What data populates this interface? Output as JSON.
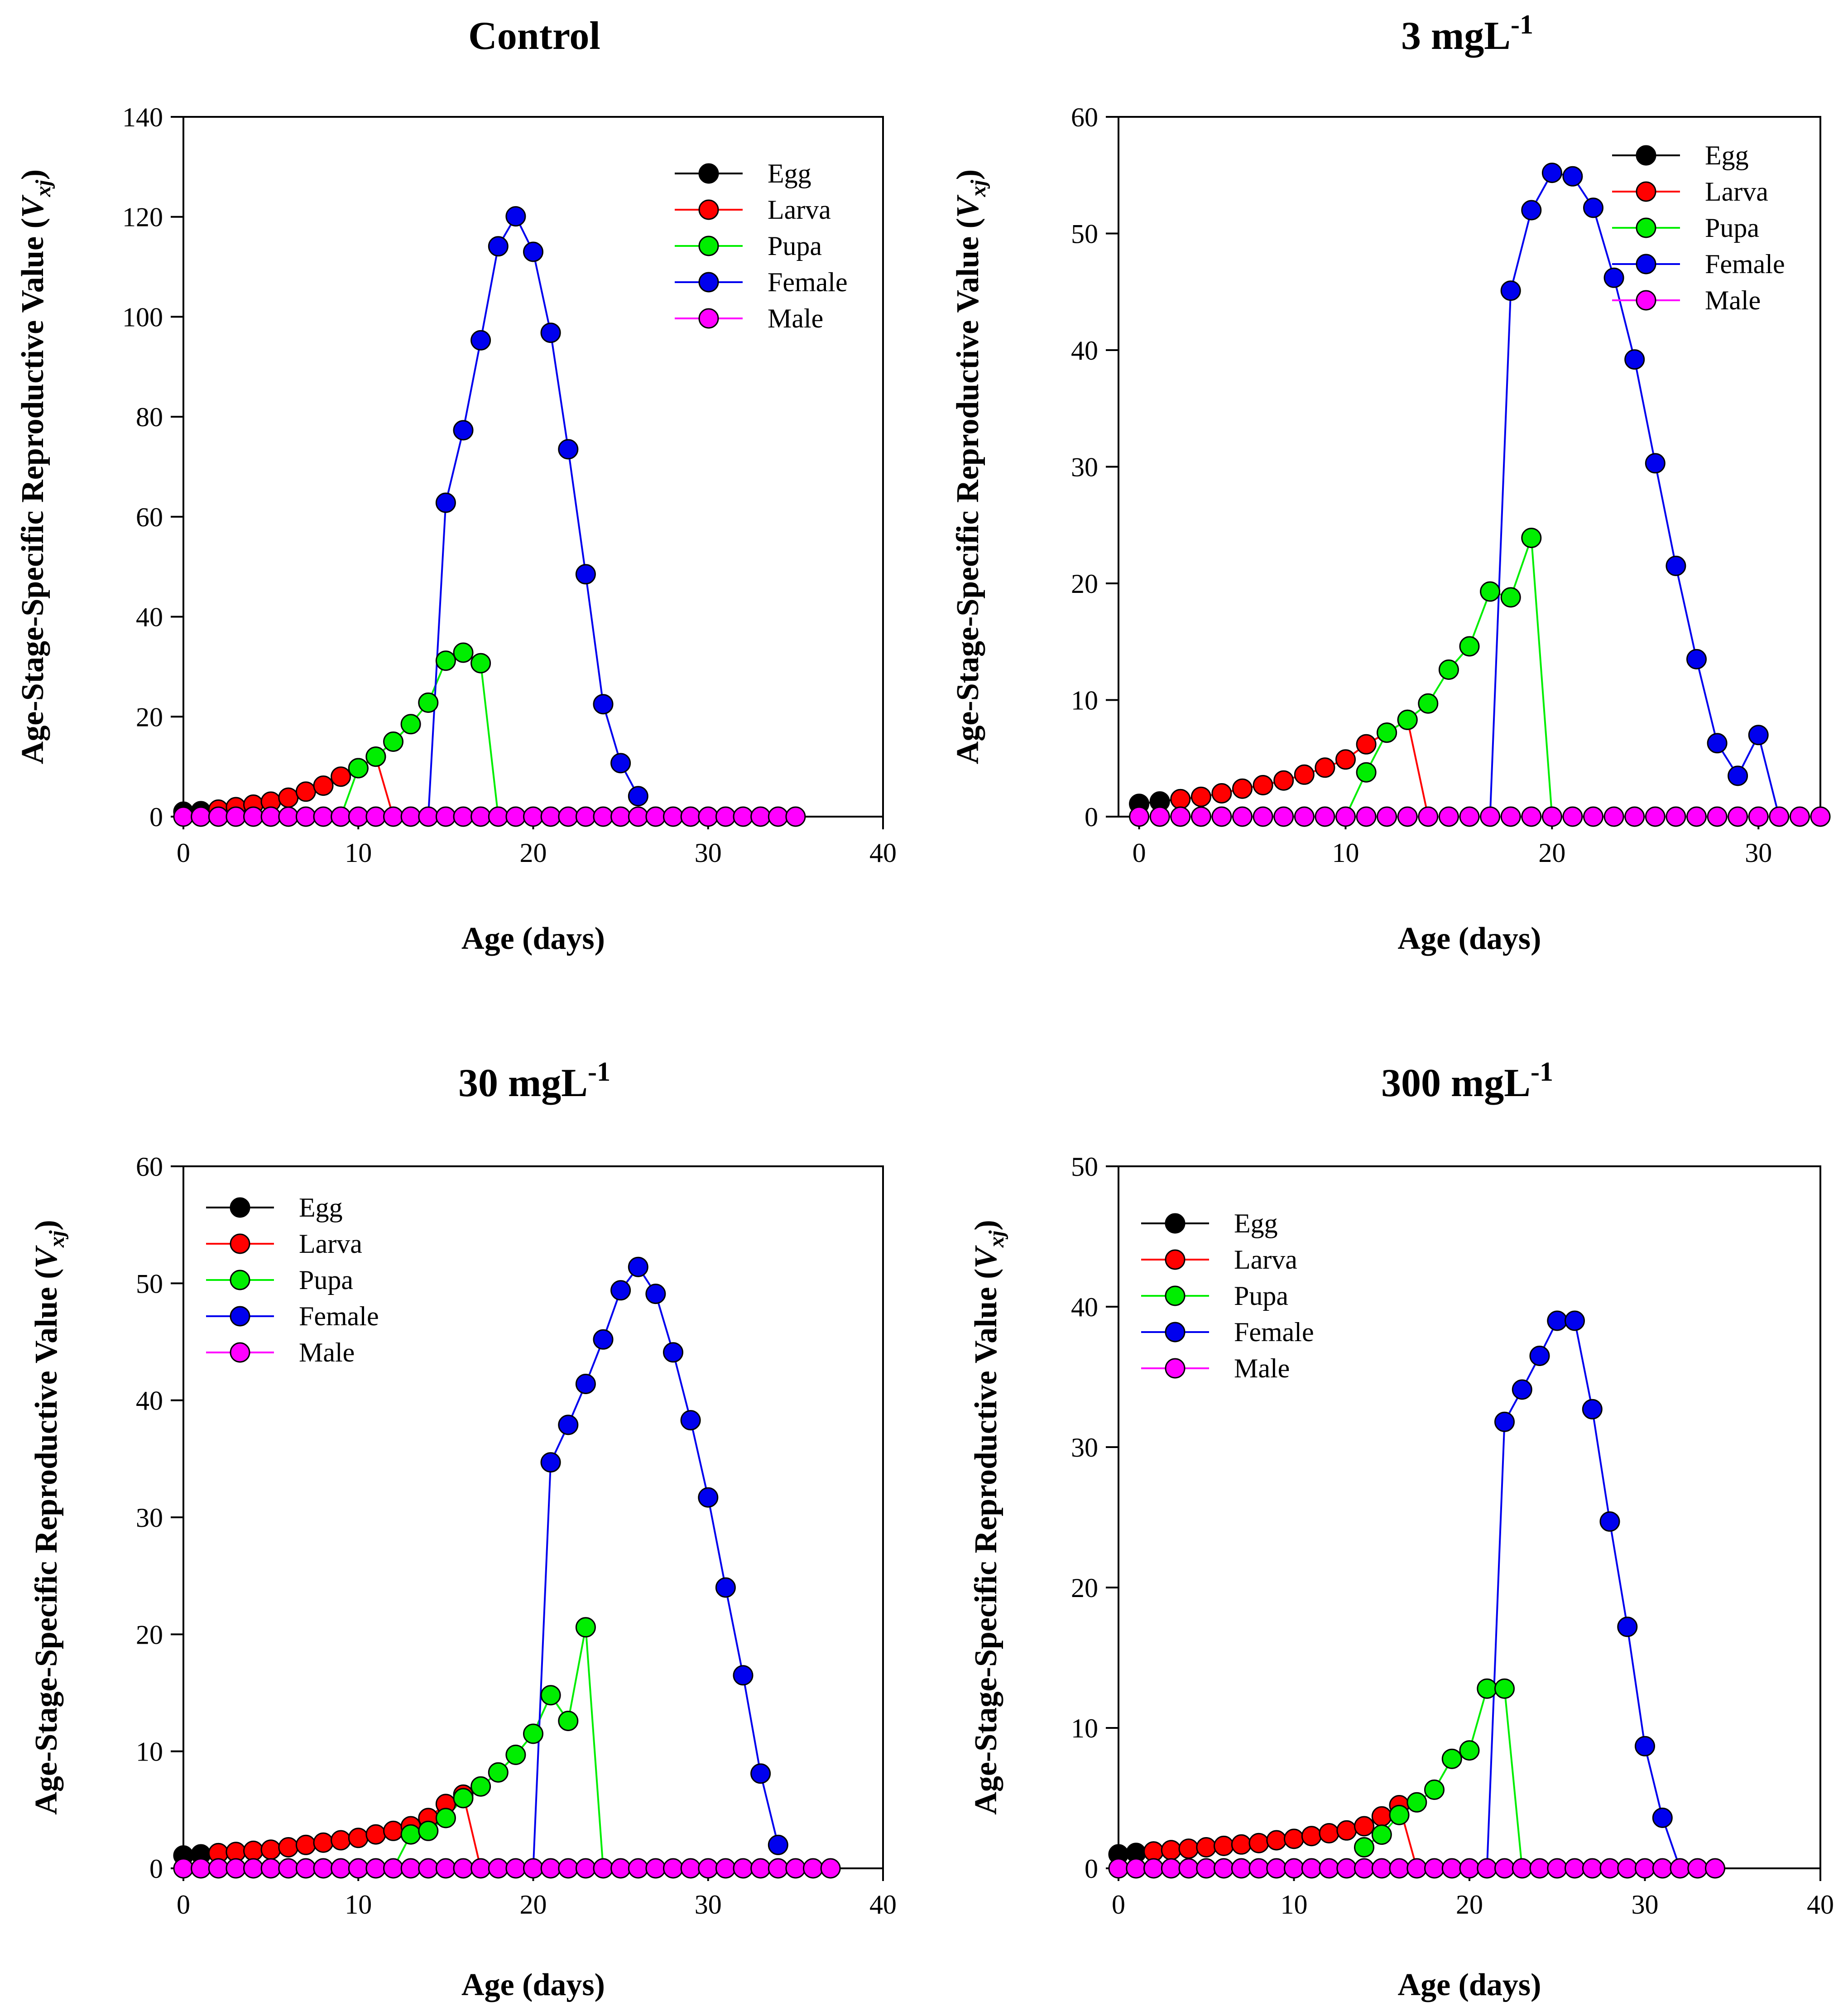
{
  "figure": {
    "ylabel_prefix": "Age-Stage-Specific Reproductive Value (",
    "ylabel_symbol": "V",
    "ylabel_sub": "xj",
    "ylabel_suffix": ")",
    "xlabel": "Age (days)"
  },
  "colors": {
    "egg": "#000000",
    "larva": "#ff0000",
    "pupa": "#00ee00",
    "female": "#0000ee",
    "male": "#ff00ff",
    "axis": "#000000"
  },
  "chart_data": [
    {
      "type": "line",
      "title_main": "Control",
      "title_sup": "",
      "xlabel": "Age (days)",
      "ylabel": "Age-Stage-Specific Reproductive Value (Vxj)",
      "xlim": [
        0,
        40
      ],
      "ylim": [
        0,
        140
      ],
      "xticks": [
        0,
        10,
        20,
        30,
        40
      ],
      "yticks": [
        0,
        20,
        40,
        60,
        80,
        100,
        120,
        140
      ],
      "legend_position": "top-right",
      "series": [
        {
          "name": "Egg",
          "key": "egg",
          "x": [
            0,
            1,
            2
          ],
          "y": [
            1.0,
            1.1,
            1.3
          ]
        },
        {
          "name": "Larva",
          "key": "larva",
          "x": [
            2,
            3,
            4,
            5,
            6,
            7,
            8,
            9,
            10,
            11,
            12
          ],
          "y": [
            1.4,
            1.9,
            2.4,
            3.0,
            3.8,
            5.0,
            6.2,
            8.0,
            9.7,
            12.0,
            0
          ]
        },
        {
          "name": "Pupa",
          "key": "pupa",
          "x": [
            9,
            10,
            11,
            12,
            13,
            14,
            15,
            16,
            17,
            18
          ],
          "y": [
            0,
            9.7,
            12.0,
            15.0,
            18.5,
            22.8,
            31.2,
            32.8,
            30.7,
            0
          ]
        },
        {
          "name": "Female",
          "key": "female",
          "x": [
            14,
            15,
            16,
            17,
            18,
            19,
            20,
            21,
            22,
            23,
            24,
            25,
            26
          ],
          "y": [
            0,
            62.8,
            77.3,
            95.3,
            114.1,
            120.1,
            113.0,
            96.8,
            73.5,
            48.5,
            22.5,
            10.7,
            4.1
          ]
        },
        {
          "name": "Male",
          "key": "male",
          "x": [
            0,
            1,
            2,
            3,
            4,
            5,
            6,
            7,
            8,
            9,
            10,
            11,
            12,
            13,
            14,
            15,
            16,
            17,
            18,
            19,
            20,
            21,
            22,
            23,
            24,
            25,
            26,
            27,
            28,
            29,
            30,
            31,
            32,
            33,
            34,
            35
          ],
          "y": [
            0,
            0,
            0,
            0,
            0,
            0,
            0,
            0,
            0,
            0,
            0,
            0,
            0,
            0,
            0,
            0,
            0,
            0,
            0,
            0,
            0,
            0,
            0,
            0,
            0,
            0,
            0,
            0,
            0,
            0,
            0,
            0,
            0,
            0,
            0,
            0
          ]
        }
      ]
    },
    {
      "type": "line",
      "title_main": "3 mgL",
      "title_sup": "-1",
      "xlabel": "Age (days)",
      "ylabel": "Age-Stage-Specific Reproductive Value (Vxj)",
      "xlim": [
        -1,
        33
      ],
      "ylim": [
        0,
        60
      ],
      "xticks": [
        0,
        10,
        20,
        30
      ],
      "yticks": [
        0,
        10,
        20,
        30,
        40,
        50,
        60
      ],
      "legend_position": "top-right",
      "series": [
        {
          "name": "Egg",
          "key": "egg",
          "x": [
            0,
            1,
            2
          ],
          "y": [
            1.1,
            1.3,
            1.5
          ]
        },
        {
          "name": "Larva",
          "key": "larva",
          "x": [
            2,
            3,
            4,
            5,
            6,
            7,
            8,
            9,
            10,
            11,
            12,
            13,
            14
          ],
          "y": [
            1.5,
            1.7,
            2.0,
            2.4,
            2.7,
            3.1,
            3.6,
            4.2,
            4.9,
            6.2,
            7.2,
            8.3,
            0
          ]
        },
        {
          "name": "Pupa",
          "key": "pupa",
          "x": [
            10,
            11,
            12,
            13,
            14,
            15,
            16,
            17,
            18,
            19,
            20
          ],
          "y": [
            0,
            3.8,
            7.2,
            8.3,
            9.7,
            12.6,
            14.6,
            19.3,
            18.8,
            23.9,
            0
          ]
        },
        {
          "name": "Female",
          "key": "female",
          "x": [
            17,
            18,
            19,
            20,
            21,
            22,
            23,
            24,
            25,
            26,
            27,
            28,
            29,
            30,
            31
          ],
          "y": [
            0,
            45.1,
            52.0,
            55.2,
            54.9,
            52.2,
            46.2,
            39.2,
            30.3,
            21.5,
            13.5,
            6.3,
            3.5,
            7.0,
            0
          ]
        },
        {
          "name": "Male",
          "key": "male",
          "x": [
            0,
            1,
            2,
            3,
            4,
            5,
            6,
            7,
            8,
            9,
            10,
            11,
            12,
            13,
            14,
            15,
            16,
            17,
            18,
            19,
            20,
            21,
            22,
            23,
            24,
            25,
            26,
            27,
            28,
            29,
            30,
            31,
            32,
            33
          ],
          "y": [
            0,
            0,
            0,
            0,
            0,
            0,
            0,
            0,
            0,
            0,
            0,
            0,
            0,
            0,
            0,
            0,
            0,
            0,
            0,
            0,
            0,
            0,
            0,
            0,
            0,
            0,
            0,
            0,
            0,
            0,
            0,
            0,
            0,
            0
          ]
        }
      ]
    },
    {
      "type": "line",
      "title_main": "30 mgL",
      "title_sup": "-1",
      "xlabel": "Age (days)",
      "ylabel": "Age-Stage-Specific Reproductive Value (Vxj)",
      "xlim": [
        0,
        40
      ],
      "ylim": [
        0,
        60
      ],
      "xticks": [
        0,
        10,
        20,
        30,
        40
      ],
      "yticks": [
        0,
        10,
        20,
        30,
        40,
        50,
        60
      ],
      "legend_position": "top-left",
      "series": [
        {
          "name": "Egg",
          "key": "egg",
          "x": [
            0,
            1,
            2
          ],
          "y": [
            1.1,
            1.2,
            1.3
          ]
        },
        {
          "name": "Larva",
          "key": "larva",
          "x": [
            2,
            3,
            4,
            5,
            6,
            7,
            8,
            9,
            10,
            11,
            12,
            13,
            14,
            15,
            16,
            17
          ],
          "y": [
            1.3,
            1.4,
            1.5,
            1.6,
            1.8,
            2.0,
            2.2,
            2.4,
            2.6,
            2.9,
            3.2,
            3.6,
            4.3,
            5.5,
            6.3,
            0
          ]
        },
        {
          "name": "Pupa",
          "key": "pupa",
          "x": [
            12,
            13,
            14,
            15,
            16,
            17,
            18,
            19,
            20,
            21,
            22,
            23,
            24
          ],
          "y": [
            0,
            2.9,
            3.2,
            4.3,
            6.0,
            7.0,
            8.2,
            9.7,
            11.5,
            14.8,
            12.6,
            20.6,
            0
          ]
        },
        {
          "name": "Female",
          "key": "female",
          "x": [
            20,
            21,
            22,
            23,
            24,
            25,
            26,
            27,
            28,
            29,
            30,
            31,
            32,
            33,
            34
          ],
          "y": [
            0,
            34.7,
            37.9,
            41.4,
            45.2,
            49.4,
            51.4,
            49.1,
            44.1,
            38.3,
            31.7,
            24.0,
            16.5,
            8.1,
            2.0
          ]
        },
        {
          "name": "Male",
          "key": "male",
          "x": [
            0,
            1,
            2,
            3,
            4,
            5,
            6,
            7,
            8,
            9,
            10,
            11,
            12,
            13,
            14,
            15,
            16,
            17,
            18,
            19,
            20,
            21,
            22,
            23,
            24,
            25,
            26,
            27,
            28,
            29,
            30,
            31,
            32,
            33,
            34,
            35,
            36,
            37
          ],
          "y": [
            0,
            0,
            0,
            0,
            0,
            0,
            0,
            0,
            0,
            0,
            0,
            0,
            0,
            0,
            0,
            0,
            0,
            0,
            0,
            0,
            0,
            0,
            0,
            0,
            0,
            0,
            0,
            0,
            0,
            0,
            0,
            0,
            0,
            0,
            0,
            0,
            0,
            0
          ]
        }
      ]
    },
    {
      "type": "line",
      "title_main": "300 mgL",
      "title_sup": "-1",
      "xlabel": "Age (days)",
      "ylabel": "Age-Stage-Specific Reproductive Value (Vxj)",
      "xlim": [
        0,
        40
      ],
      "ylim": [
        0,
        50
      ],
      "xticks": [
        0,
        10,
        20,
        30,
        40
      ],
      "yticks": [
        0,
        10,
        20,
        30,
        40,
        50
      ],
      "legend_position": "top-left",
      "series": [
        {
          "name": "Egg",
          "key": "egg",
          "x": [
            0,
            1,
            2
          ],
          "y": [
            1.0,
            1.1,
            1.2
          ]
        },
        {
          "name": "Larva",
          "key": "larva",
          "x": [
            2,
            3,
            4,
            5,
            6,
            7,
            8,
            9,
            10,
            11,
            12,
            13,
            14,
            15,
            16,
            17
          ],
          "y": [
            1.2,
            1.3,
            1.4,
            1.5,
            1.6,
            1.7,
            1.8,
            2.0,
            2.1,
            2.3,
            2.5,
            2.7,
            3.0,
            3.7,
            4.5,
            0
          ]
        },
        {
          "name": "Pupa",
          "key": "pupa",
          "x": [
            14,
            15,
            16,
            17,
            18,
            19,
            20,
            21,
            22,
            23
          ],
          "y": [
            1.5,
            2.4,
            3.8,
            4.7,
            5.6,
            7.8,
            8.4,
            12.8,
            12.8,
            0
          ]
        },
        {
          "name": "Female",
          "key": "female",
          "x": [
            21,
            22,
            23,
            24,
            25,
            26,
            27,
            28,
            29,
            30,
            31,
            32
          ],
          "y": [
            0,
            31.8,
            34.1,
            36.5,
            39.0,
            39.0,
            32.7,
            24.7,
            17.2,
            8.7,
            3.6,
            0
          ]
        },
        {
          "name": "Male",
          "key": "male",
          "x": [
            0,
            1,
            2,
            3,
            4,
            5,
            6,
            7,
            8,
            9,
            10,
            11,
            12,
            13,
            14,
            15,
            16,
            17,
            18,
            19,
            20,
            21,
            22,
            23,
            24,
            25,
            26,
            27,
            28,
            29,
            30,
            31,
            32,
            33,
            34
          ],
          "y": [
            0,
            0,
            0,
            0,
            0,
            0,
            0,
            0,
            0,
            0,
            0,
            0,
            0,
            0,
            0,
            0,
            0,
            0,
            0,
            0,
            0,
            0,
            0,
            0,
            0,
            0,
            0,
            0,
            0,
            0,
            0,
            0,
            0,
            0,
            0
          ]
        }
      ]
    }
  ]
}
